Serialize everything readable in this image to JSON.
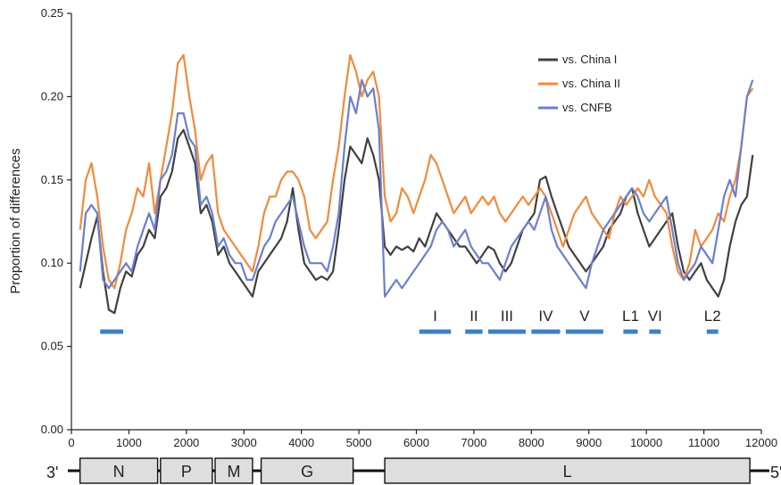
{
  "chart_data": {
    "type": "line",
    "title": "",
    "xlabel": "",
    "ylabel": "Proportion of differences",
    "xlim": [
      0,
      12000
    ],
    "ylim": [
      0,
      0.25
    ],
    "x_ticks": [
      0,
      1000,
      2000,
      3000,
      4000,
      5000,
      6000,
      7000,
      8000,
      9000,
      10000,
      11000,
      12000
    ],
    "y_ticks": [
      0.0,
      0.05,
      0.1,
      0.15,
      0.2,
      0.25
    ],
    "y_tick_labels": [
      "0.00",
      "0.05",
      "0.10",
      "0.15",
      "0.20",
      "0.25"
    ],
    "grid": false,
    "legend_position": "top-right",
    "series": [
      {
        "name": "vs. China I",
        "color": "#404040",
        "x": [
          150,
          250,
          350,
          450,
          550,
          650,
          750,
          850,
          950,
          1050,
          1150,
          1250,
          1350,
          1450,
          1550,
          1650,
          1750,
          1850,
          1950,
          2050,
          2150,
          2250,
          2350,
          2450,
          2550,
          2650,
          2750,
          2850,
          2950,
          3050,
          3150,
          3250,
          3350,
          3450,
          3550,
          3650,
          3750,
          3850,
          3950,
          4050,
          4150,
          4250,
          4350,
          4450,
          4550,
          4650,
          4750,
          4850,
          4950,
          5050,
          5150,
          5250,
          5350,
          5450,
          5550,
          5650,
          5750,
          5850,
          5950,
          6050,
          6150,
          6250,
          6350,
          6450,
          6550,
          6650,
          6750,
          6850,
          6950,
          7050,
          7150,
          7250,
          7350,
          7450,
          7550,
          7650,
          7750,
          7850,
          7950,
          8050,
          8150,
          8250,
          8350,
          8450,
          8550,
          8650,
          8750,
          8850,
          8950,
          9050,
          9150,
          9250,
          9350,
          9450,
          9550,
          9650,
          9750,
          9850,
          9950,
          10050,
          10150,
          10250,
          10350,
          10450,
          10550,
          10650,
          10750,
          10850,
          10950,
          11050,
          11150,
          11250,
          11350,
          11450,
          11550,
          11650,
          11750,
          11850
        ],
        "values": [
          0.085,
          0.1,
          0.115,
          0.128,
          0.095,
          0.072,
          0.07,
          0.085,
          0.095,
          0.092,
          0.105,
          0.11,
          0.12,
          0.115,
          0.14,
          0.145,
          0.155,
          0.175,
          0.18,
          0.17,
          0.16,
          0.13,
          0.135,
          0.125,
          0.105,
          0.11,
          0.1,
          0.095,
          0.09,
          0.085,
          0.08,
          0.095,
          0.1,
          0.105,
          0.11,
          0.115,
          0.125,
          0.145,
          0.12,
          0.1,
          0.095,
          0.09,
          0.092,
          0.09,
          0.095,
          0.12,
          0.15,
          0.17,
          0.165,
          0.16,
          0.175,
          0.165,
          0.15,
          0.11,
          0.105,
          0.11,
          0.108,
          0.11,
          0.107,
          0.115,
          0.11,
          0.12,
          0.13,
          0.125,
          0.12,
          0.115,
          0.11,
          0.11,
          0.105,
          0.1,
          0.105,
          0.11,
          0.108,
          0.1,
          0.095,
          0.1,
          0.11,
          0.12,
          0.125,
          0.13,
          0.15,
          0.152,
          0.14,
          0.13,
          0.12,
          0.11,
          0.105,
          0.1,
          0.095,
          0.1,
          0.105,
          0.11,
          0.12,
          0.125,
          0.13,
          0.14,
          0.145,
          0.13,
          0.12,
          0.11,
          0.115,
          0.12,
          0.125,
          0.13,
          0.11,
          0.095,
          0.09,
          0.095,
          0.1,
          0.09,
          0.085,
          0.08,
          0.09,
          0.11,
          0.125,
          0.135,
          0.14,
          0.165
        ]
      },
      {
        "name": "vs. China II",
        "color": "#f28a3c",
        "x": [
          150,
          250,
          350,
          450,
          550,
          650,
          750,
          850,
          950,
          1050,
          1150,
          1250,
          1350,
          1450,
          1550,
          1650,
          1750,
          1850,
          1950,
          2050,
          2150,
          2250,
          2350,
          2450,
          2550,
          2650,
          2750,
          2850,
          2950,
          3050,
          3150,
          3250,
          3350,
          3450,
          3550,
          3650,
          3750,
          3850,
          3950,
          4050,
          4150,
          4250,
          4350,
          4450,
          4550,
          4650,
          4750,
          4850,
          4950,
          5050,
          5150,
          5250,
          5350,
          5450,
          5550,
          5650,
          5750,
          5850,
          5950,
          6050,
          6150,
          6250,
          6350,
          6450,
          6550,
          6650,
          6750,
          6850,
          6950,
          7050,
          7150,
          7250,
          7350,
          7450,
          7550,
          7650,
          7750,
          7850,
          7950,
          8050,
          8150,
          8250,
          8350,
          8450,
          8550,
          8650,
          8750,
          8850,
          8950,
          9050,
          9150,
          9250,
          9350,
          9450,
          9550,
          9650,
          9750,
          9850,
          9950,
          10050,
          10150,
          10250,
          10350,
          10450,
          10550,
          10650,
          10750,
          10850,
          10950,
          11050,
          11150,
          11250,
          11350,
          11450,
          11550,
          11650,
          11750,
          11850
        ],
        "values": [
          0.12,
          0.15,
          0.16,
          0.14,
          0.11,
          0.09,
          0.085,
          0.1,
          0.12,
          0.13,
          0.145,
          0.14,
          0.16,
          0.13,
          0.15,
          0.17,
          0.19,
          0.22,
          0.225,
          0.2,
          0.18,
          0.15,
          0.16,
          0.165,
          0.13,
          0.12,
          0.115,
          0.11,
          0.105,
          0.1,
          0.095,
          0.11,
          0.13,
          0.14,
          0.14,
          0.15,
          0.155,
          0.155,
          0.15,
          0.14,
          0.12,
          0.115,
          0.12,
          0.125,
          0.15,
          0.17,
          0.2,
          0.225,
          0.215,
          0.2,
          0.21,
          0.215,
          0.2,
          0.14,
          0.125,
          0.13,
          0.145,
          0.14,
          0.13,
          0.14,
          0.15,
          0.165,
          0.16,
          0.15,
          0.14,
          0.13,
          0.135,
          0.14,
          0.13,
          0.135,
          0.14,
          0.135,
          0.14,
          0.13,
          0.125,
          0.13,
          0.135,
          0.14,
          0.135,
          0.14,
          0.145,
          0.14,
          0.13,
          0.12,
          0.11,
          0.12,
          0.13,
          0.135,
          0.14,
          0.13,
          0.125,
          0.12,
          0.115,
          0.13,
          0.14,
          0.135,
          0.14,
          0.145,
          0.14,
          0.15,
          0.14,
          0.135,
          0.13,
          0.11,
          0.095,
          0.09,
          0.1,
          0.12,
          0.11,
          0.115,
          0.12,
          0.13,
          0.125,
          0.14,
          0.15,
          0.17,
          0.2,
          0.205
        ]
      },
      {
        "name": "vs. CNFB",
        "color": "#6b7fce",
        "x": [
          150,
          250,
          350,
          450,
          550,
          650,
          750,
          850,
          950,
          1050,
          1150,
          1250,
          1350,
          1450,
          1550,
          1650,
          1750,
          1850,
          1950,
          2050,
          2150,
          2250,
          2350,
          2450,
          2550,
          2650,
          2750,
          2850,
          2950,
          3050,
          3150,
          3250,
          3350,
          3450,
          3550,
          3650,
          3750,
          3850,
          3950,
          4050,
          4150,
          4250,
          4350,
          4450,
          4550,
          4650,
          4750,
          4850,
          4950,
          5050,
          5150,
          5250,
          5350,
          5450,
          5550,
          5650,
          5750,
          5850,
          5950,
          6050,
          6150,
          6250,
          6350,
          6450,
          6550,
          6650,
          6750,
          6850,
          6950,
          7050,
          7150,
          7250,
          7350,
          7450,
          7550,
          7650,
          7750,
          7850,
          7950,
          8050,
          8150,
          8250,
          8350,
          8450,
          8550,
          8650,
          8750,
          8850,
          8950,
          9050,
          9150,
          9250,
          9350,
          9450,
          9550,
          9650,
          9750,
          9850,
          9950,
          10050,
          10150,
          10250,
          10350,
          10450,
          10550,
          10650,
          10750,
          10850,
          10950,
          11050,
          11150,
          11250,
          11350,
          11450,
          11550,
          11650,
          11750,
          11850
        ],
        "values": [
          0.095,
          0.13,
          0.135,
          0.13,
          0.09,
          0.085,
          0.09,
          0.095,
          0.1,
          0.095,
          0.11,
          0.12,
          0.13,
          0.12,
          0.15,
          0.155,
          0.165,
          0.19,
          0.19,
          0.175,
          0.17,
          0.135,
          0.14,
          0.13,
          0.11,
          0.115,
          0.105,
          0.1,
          0.1,
          0.09,
          0.09,
          0.1,
          0.11,
          0.115,
          0.125,
          0.13,
          0.135,
          0.14,
          0.125,
          0.11,
          0.1,
          0.1,
          0.1,
          0.095,
          0.11,
          0.13,
          0.17,
          0.2,
          0.19,
          0.21,
          0.2,
          0.205,
          0.18,
          0.08,
          0.085,
          0.09,
          0.085,
          0.09,
          0.095,
          0.1,
          0.105,
          0.11,
          0.12,
          0.125,
          0.12,
          0.11,
          0.115,
          0.12,
          0.11,
          0.105,
          0.1,
          0.1,
          0.095,
          0.09,
          0.1,
          0.11,
          0.115,
          0.12,
          0.125,
          0.12,
          0.13,
          0.14,
          0.12,
          0.11,
          0.105,
          0.1,
          0.095,
          0.09,
          0.085,
          0.1,
          0.11,
          0.12,
          0.125,
          0.13,
          0.135,
          0.14,
          0.145,
          0.14,
          0.13,
          0.125,
          0.13,
          0.135,
          0.14,
          0.12,
          0.1,
          0.09,
          0.095,
          0.1,
          0.11,
          0.105,
          0.1,
          0.12,
          0.14,
          0.15,
          0.14,
          0.17,
          0.2,
          0.21
        ]
      }
    ],
    "regions": [
      {
        "label": "",
        "start": 500,
        "end": 900
      },
      {
        "label": "I",
        "start": 6050,
        "end": 6600
      },
      {
        "label": "II",
        "start": 6850,
        "end": 7150
      },
      {
        "label": "III",
        "start": 7250,
        "end": 7900
      },
      {
        "label": "IV",
        "start": 8000,
        "end": 8500
      },
      {
        "label": "V",
        "start": 8600,
        "end": 9250
      },
      {
        "label": "L1",
        "start": 9600,
        "end": 9850
      },
      {
        "label": "VI",
        "start": 10050,
        "end": 10250
      },
      {
        "label": "L2",
        "start": 11050,
        "end": 11250
      }
    ]
  },
  "genome_map": {
    "left_end": "3'",
    "right_end": "5'",
    "genes": [
      {
        "label": "N",
        "start": 150,
        "end": 1500
      },
      {
        "label": "P",
        "start": 1550,
        "end": 2450
      },
      {
        "label": "M",
        "start": 2500,
        "end": 3150
      },
      {
        "label": "G",
        "start": 3300,
        "end": 4900
      },
      {
        "label": "L",
        "start": 5450,
        "end": 11800
      }
    ]
  }
}
